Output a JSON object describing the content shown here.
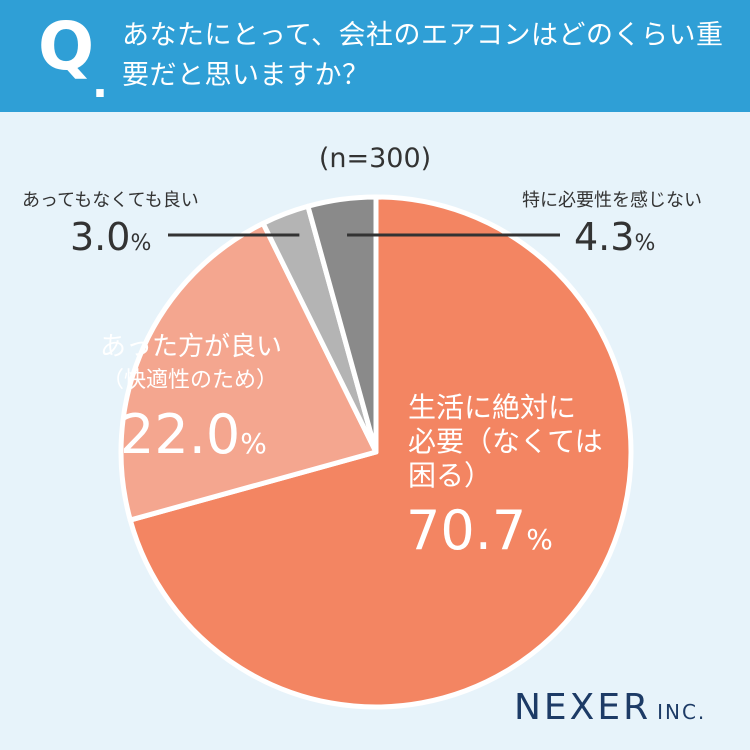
{
  "question": {
    "mark": "Q",
    "dot": ".",
    "text": "あなたにとって、会社のエアコンはどのくらい重要だと思いますか？"
  },
  "sample_size": "(n=300)",
  "logo": {
    "name": "NEXER",
    "suffix": "INC."
  },
  "chart_data": {
    "type": "pie",
    "unit": "%",
    "slices": [
      {
        "label": "生活に絶対に必要（なくては困る）",
        "label_lines": [
          "生活に絶対に",
          "必要（なくては",
          "困る）"
        ],
        "value": 70.7,
        "value_text": "70.7",
        "color": "#f38562"
      },
      {
        "label": "あった方が良い（快適性のため）",
        "label_lines": [
          "あった方が良い",
          "（快適性のため）"
        ],
        "value": 22.0,
        "value_text": "22.0",
        "color": "#f4a68f"
      },
      {
        "label": "あってもなくても良い",
        "value": 3.0,
        "value_text": "3.0",
        "color": "#b4b4b4"
      },
      {
        "label": "特に必要性を感じない",
        "value": 4.3,
        "value_text": "4.3",
        "color": "#8a8a8a"
      }
    ]
  }
}
